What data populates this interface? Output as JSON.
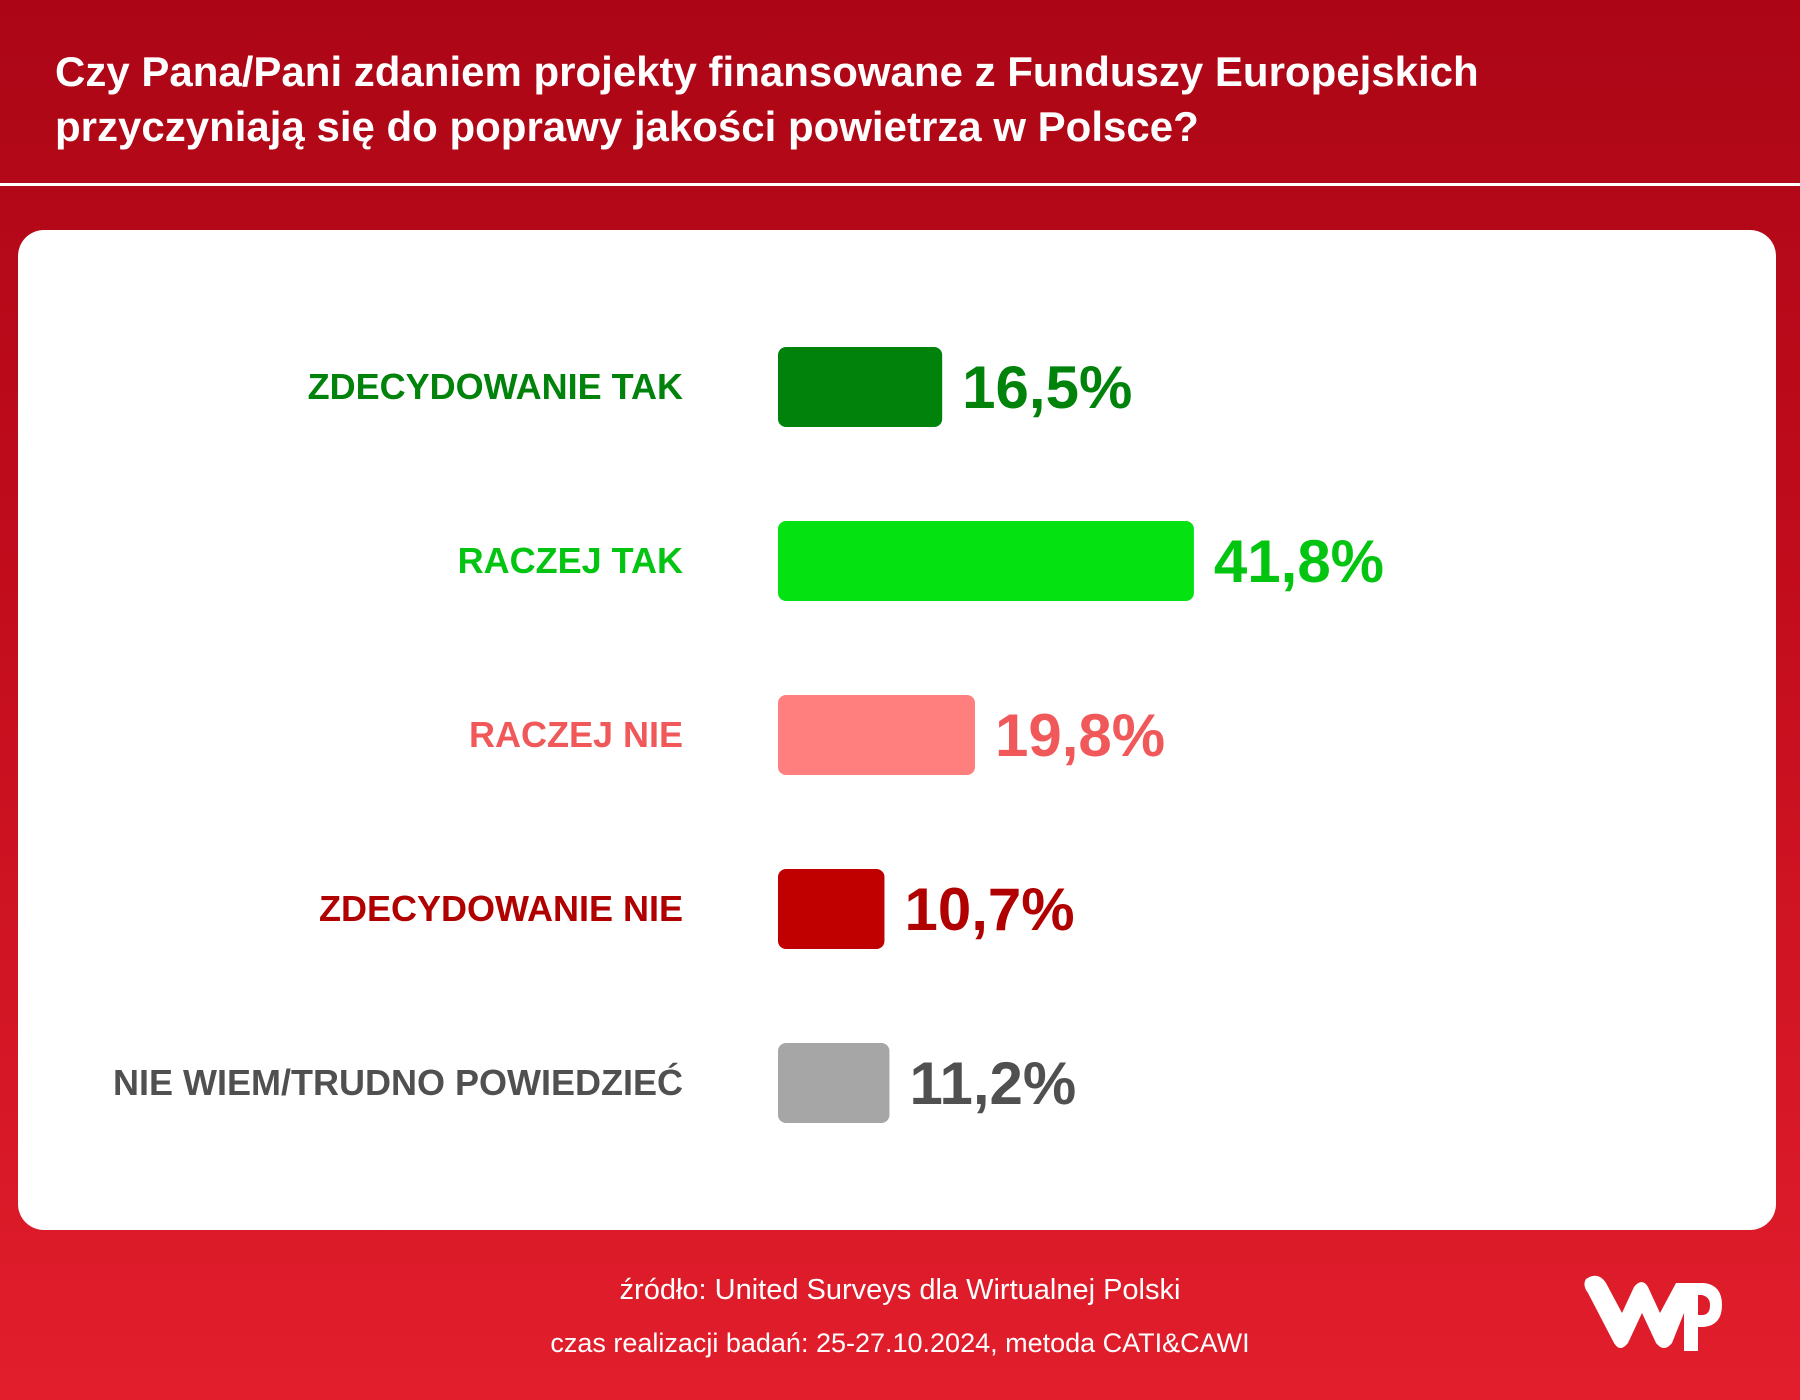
{
  "title": "Czy Pana/Pani zdaniem projekty finansowane z Funduszy Europejskich przyczyniają się do poprawy jakości powietrza w Polsce?",
  "chart_data": {
    "type": "bar",
    "orientation": "horizontal",
    "categories": [
      "ZDECYDOWANIE TAK",
      "RACZEJ TAK",
      "RACZEJ NIE",
      "ZDECYDOWANIE NIE",
      "NIE WIEM/TRUDNO POWIEDZIEĆ"
    ],
    "values": [
      16.5,
      41.8,
      19.8,
      10.7,
      11.2
    ],
    "value_labels": [
      "16,5%",
      "41,8%",
      "19,8%",
      "10,7%",
      "11,2%"
    ],
    "bar_colors": [
      "#00820b",
      "#04e212",
      "#ff7f7f",
      "#c00000",
      "#a6a6a6"
    ],
    "label_colors": [
      "#00820b",
      "#04c412",
      "#f0585a",
      "#b00000",
      "#505050"
    ],
    "unit": "%",
    "grid": false,
    "legend": "none"
  },
  "footer": {
    "source": "źródło: United Surveys dla Wirtualnej Polski",
    "method": "czas realizacji badań: 25-27.10.2024, metoda CATI&CAWI"
  },
  "logo": {
    "icon": "wp-logo-icon",
    "color": "#ffffff"
  },
  "colors": {
    "background": "#c10c1c",
    "card": "#ffffff"
  }
}
